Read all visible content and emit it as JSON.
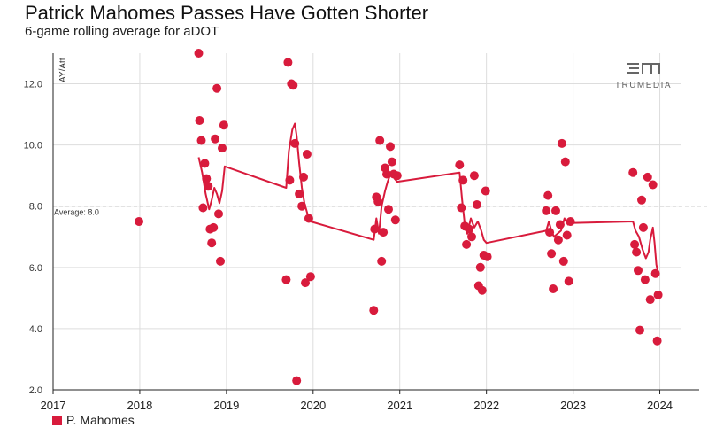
{
  "header": {
    "title": "Patrick Mahomes Passes Have Gotten Shorter",
    "subtitle": "6-game rolling average for aDOT"
  },
  "brand": {
    "logo_text": "TRUMEDIA"
  },
  "colors": {
    "series": "#d81b3c",
    "grid": "#dddddd",
    "average": "#999999",
    "axis": "#222222"
  },
  "chart_data": {
    "type": "scatter",
    "title": "Patrick Mahomes Passes Have Gotten Shorter",
    "subtitle": "6-game rolling average for aDOT",
    "xlabel": "",
    "ylabel": "AY/Att",
    "xlim": [
      2017.0,
      2024.25
    ],
    "ylim": [
      2.0,
      13.0
    ],
    "x_ticks": [
      "2017",
      "2018",
      "2019",
      "2020",
      "2021",
      "2022",
      "2023",
      "2024"
    ],
    "y_ticks": [
      "2.0",
      "4.0",
      "6.0",
      "8.0",
      "10.0",
      "12.0"
    ],
    "grid": true,
    "legend": "bottom-left",
    "reference_line": {
      "value": 8.0,
      "label": "Average: 8.0"
    },
    "series": [
      {
        "name": "P. Mahomes",
        "kind": "points",
        "x": [
          2017.99,
          2018.68,
          2018.69,
          2018.71,
          2018.73,
          2018.75,
          2018.77,
          2018.79,
          2018.81,
          2018.83,
          2018.85,
          2018.87,
          2018.89,
          2018.91,
          2018.93,
          2018.95,
          2018.97,
          2019.69,
          2019.71,
          2019.73,
          2019.75,
          2019.77,
          2019.79,
          2019.81,
          2019.84,
          2019.87,
          2019.89,
          2019.91,
          2019.93,
          2019.95,
          2019.97,
          2020.7,
          2020.71,
          2020.73,
          2020.75,
          2020.77,
          2020.79,
          2020.81,
          2020.83,
          2020.85,
          2020.87,
          2020.89,
          2020.91,
          2020.93,
          2020.95,
          2020.97,
          2021.69,
          2021.71,
          2021.73,
          2021.75,
          2021.77,
          2021.8,
          2021.83,
          2021.86,
          2021.89,
          2021.91,
          2021.93,
          2021.95,
          2021.97,
          2021.99,
          2022.01,
          2022.69,
          2022.71,
          2022.73,
          2022.75,
          2022.77,
          2022.8,
          2022.83,
          2022.85,
          2022.87,
          2022.89,
          2022.91,
          2022.93,
          2022.95,
          2022.97,
          2023.69,
          2023.71,
          2023.73,
          2023.75,
          2023.77,
          2023.79,
          2023.81,
          2023.83,
          2023.86,
          2023.89,
          2023.92,
          2023.95,
          2023.97,
          2023.98
        ],
        "y": [
          7.5,
          13.0,
          10.8,
          10.15,
          7.95,
          9.4,
          8.9,
          8.65,
          7.25,
          6.8,
          7.3,
          10.2,
          11.85,
          7.75,
          6.2,
          9.9,
          10.65,
          5.6,
          12.7,
          8.85,
          12.0,
          11.95,
          10.05,
          2.3,
          8.4,
          8.0,
          8.95,
          5.5,
          9.7,
          7.6,
          5.7,
          4.6,
          7.25,
          8.3,
          8.15,
          10.15,
          6.2,
          7.15,
          9.25,
          9.05,
          7.9,
          9.95,
          9.45,
          9.05,
          7.55,
          9.0,
          9.35,
          7.95,
          8.85,
          7.35,
          6.75,
          7.25,
          7.0,
          9.0,
          8.05,
          5.4,
          6.0,
          5.25,
          6.4,
          8.5,
          6.35,
          7.85,
          8.35,
          7.15,
          6.45,
          5.3,
          7.85,
          6.9,
          7.4,
          10.05,
          6.2,
          9.45,
          7.05,
          5.55,
          7.5,
          9.1,
          6.75,
          6.5,
          5.9,
          3.95,
          8.2,
          7.3,
          5.6,
          8.95,
          4.95,
          8.7,
          5.8,
          3.6,
          5.1
        ]
      },
      {
        "name": "P. Mahomes",
        "kind": "rolling-line",
        "x": [
          2018.68,
          2018.72,
          2018.76,
          2018.8,
          2018.83,
          2018.86,
          2018.89,
          2018.92,
          2018.95,
          2018.98,
          2019.69,
          2019.72,
          2019.76,
          2019.79,
          2019.81,
          2019.84,
          2019.87,
          2019.9,
          2019.94,
          2019.97,
          2020.7,
          2020.73,
          2020.76,
          2020.79,
          2020.83,
          2020.86,
          2020.9,
          2020.94,
          2020.97,
          2021.69,
          2021.72,
          2021.75,
          2021.78,
          2021.82,
          2021.86,
          2021.9,
          2021.94,
          2021.97,
          2022.0,
          2022.69,
          2022.72,
          2022.75,
          2022.78,
          2022.82,
          2022.86,
          2022.9,
          2022.94,
          2022.97,
          2023.69,
          2023.72,
          2023.76,
          2023.8,
          2023.84,
          2023.87,
          2023.89,
          2023.92,
          2023.94,
          2023.96,
          2023.98
        ],
        "y": [
          9.6,
          9.1,
          8.4,
          7.9,
          8.2,
          8.6,
          8.4,
          8.1,
          8.5,
          9.3,
          8.6,
          9.8,
          10.5,
          10.7,
          10.3,
          9.4,
          8.6,
          8.1,
          7.7,
          7.5,
          6.9,
          7.6,
          7.1,
          8.0,
          8.5,
          8.8,
          9.1,
          8.9,
          8.8,
          9.1,
          8.2,
          7.4,
          7.1,
          7.6,
          7.3,
          7.5,
          7.2,
          6.9,
          6.8,
          7.2,
          7.5,
          7.2,
          7.0,
          7.1,
          7.2,
          7.6,
          7.4,
          7.45,
          7.5,
          7.2,
          7.0,
          6.6,
          6.3,
          6.5,
          6.9,
          7.3,
          6.8,
          6.1,
          5.8
        ]
      }
    ]
  }
}
